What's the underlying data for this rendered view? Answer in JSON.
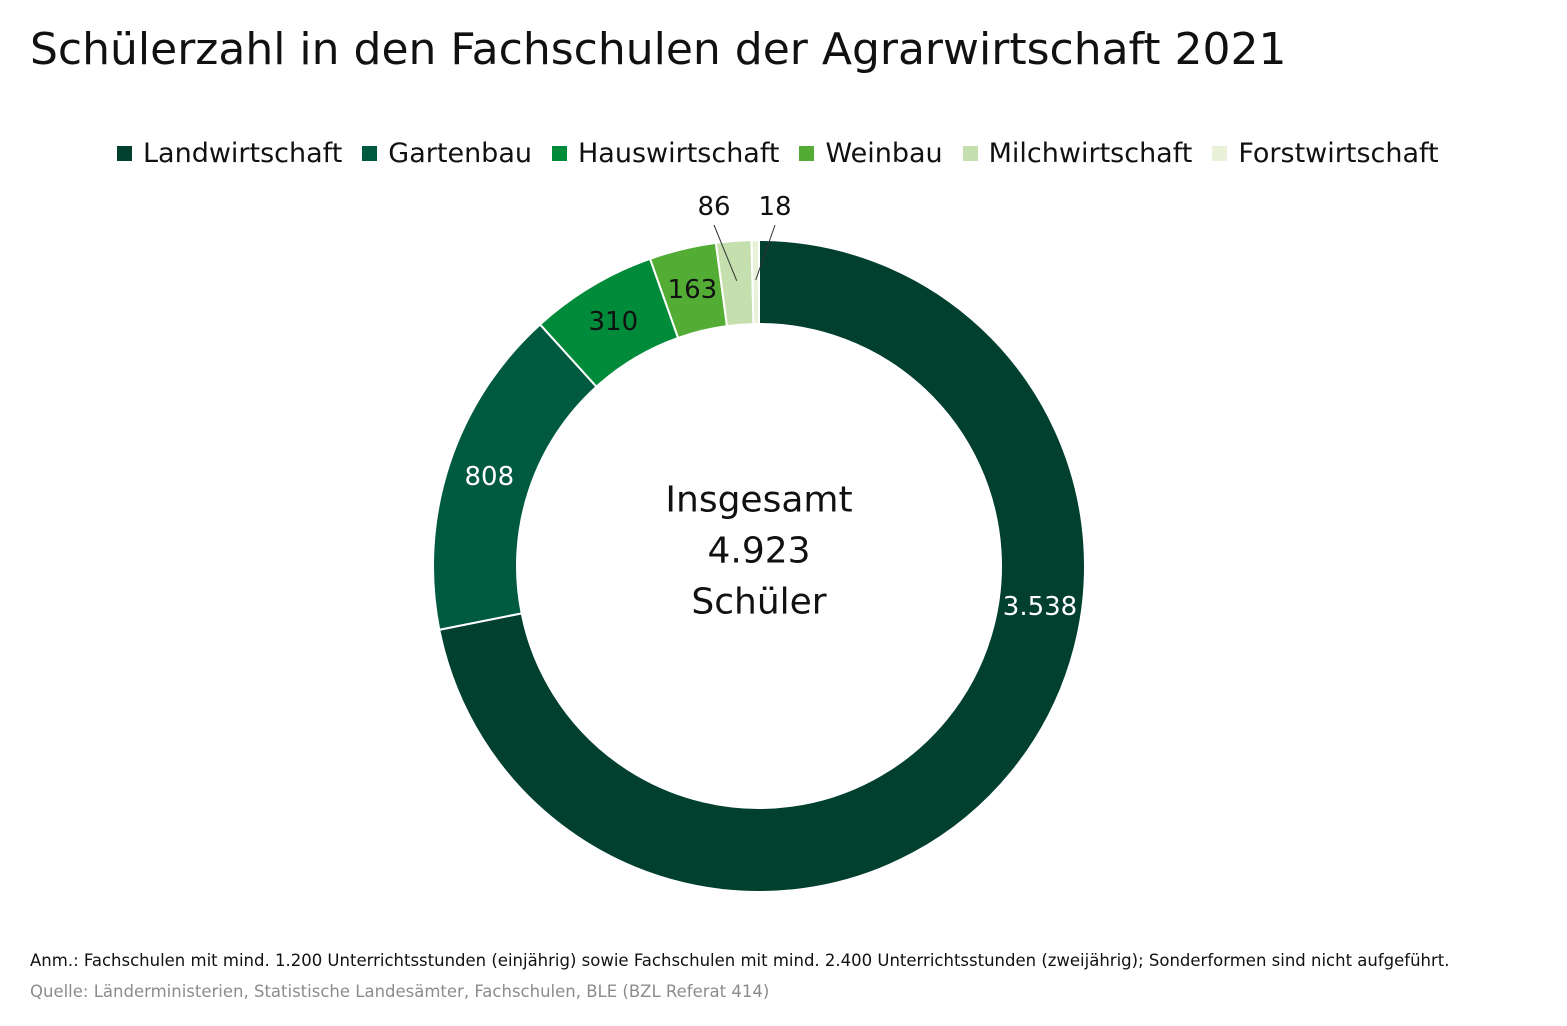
{
  "title": "Schülerzahl in den Fachschulen der Agrarwirtschaft 2021",
  "chart_data": {
    "type": "pie",
    "variant": "donut",
    "legend_position": "top",
    "series": [
      {
        "name": "Landwirtschaft",
        "value": 3538,
        "label": "3.538",
        "color": "#013f2e",
        "label_color": "#ffffff"
      },
      {
        "name": "Gartenbau",
        "value": 808,
        "label": "808",
        "color": "#005a40",
        "label_color": "#ffffff"
      },
      {
        "name": "Hauswirtschaft",
        "value": 310,
        "label": "310",
        "color": "#008b3a",
        "label_color": "#111111"
      },
      {
        "name": "Weinbau",
        "value": 163,
        "label": "163",
        "color": "#53ad35",
        "label_color": "#111111"
      },
      {
        "name": "Milchwirtschaft",
        "value": 86,
        "label": "86",
        "color": "#c5dfae",
        "label_color": "#111111"
      },
      {
        "name": "Forstwirtschaft",
        "value": 18,
        "label": "18",
        "color": "#e9f1d9",
        "label_color": "#111111"
      }
    ],
    "center_text": [
      "Insgesamt",
      "4.923",
      "Schüler"
    ]
  },
  "footer": {
    "note": "Anm.: Fachschulen mit mind. 1.200 Unterrichtsstunden (einjährig) sowie Fachschulen mit mind. 2.400 Unterrichtsstunden (zweijährig); Sonderformen sind nicht aufgeführt.",
    "source": "Quelle: Länderministerien, Statistische Landesämter, Fachschulen, BLE (BZL Referat 414)"
  }
}
